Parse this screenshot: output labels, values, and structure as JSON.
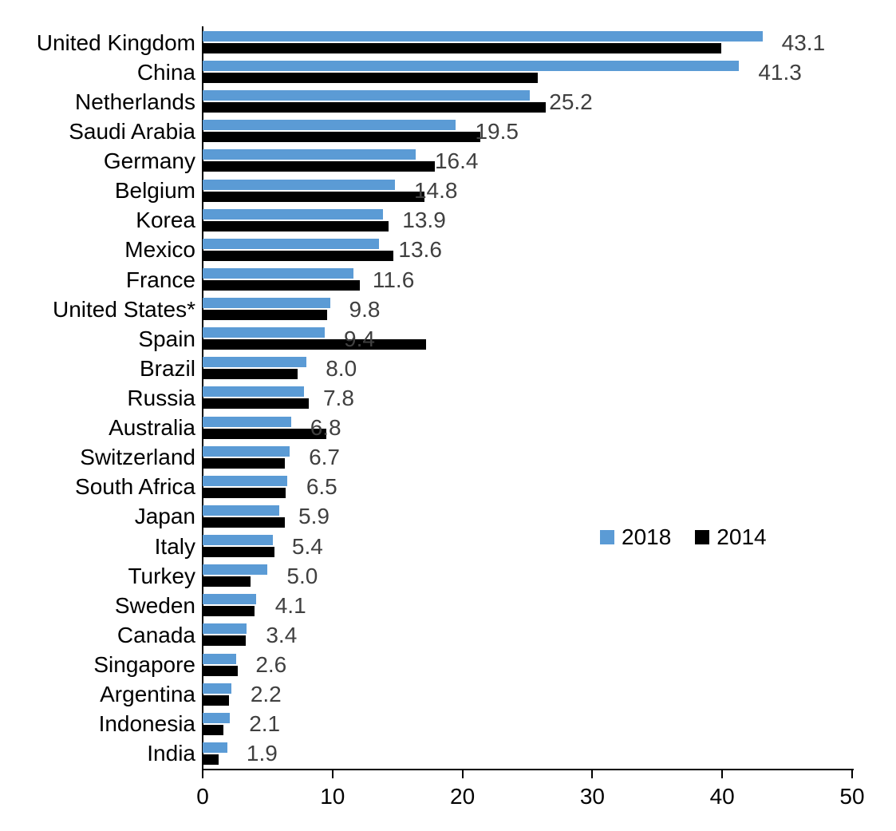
{
  "chart_data": {
    "type": "bar",
    "orientation": "horizontal",
    "categories": [
      "United Kingdom",
      "China",
      "Netherlands",
      "Saudi Arabia",
      "Germany",
      "Belgium",
      "Korea",
      "Mexico",
      "France",
      "United States*",
      "Spain",
      "Brazil",
      "Russia",
      "Australia",
      "Switzerland",
      "South Africa",
      "Japan",
      "Italy",
      "Turkey",
      "Sweden",
      "Canada",
      "Singapore",
      "Argentina",
      "Indonesia",
      "India"
    ],
    "series": [
      {
        "name": "2018",
        "color": "#5B9BD5",
        "values": [
          43.1,
          41.3,
          25.2,
          19.5,
          16.4,
          14.8,
          13.9,
          13.6,
          11.6,
          9.8,
          9.4,
          8.0,
          7.8,
          6.8,
          6.7,
          6.5,
          5.9,
          5.4,
          5.0,
          4.1,
          3.4,
          2.6,
          2.2,
          2.1,
          1.9
        ],
        "data_labels": [
          "43.1",
          "41.3",
          "25.2",
          "19.5",
          "16.4",
          "14.8",
          "13.9",
          "13.6",
          "11.6",
          "9.8",
          "9.4",
          "8.0",
          "7.8",
          "6.8",
          "6.7",
          "6.5",
          "5.9",
          "5.4",
          "5.0",
          "4.1",
          "3.4",
          "2.6",
          "2.2",
          "2.1",
          "1.9"
        ]
      },
      {
        "name": "2014",
        "color": "#000000",
        "values": [
          39.9,
          25.8,
          26.4,
          21.4,
          17.9,
          17.1,
          14.3,
          14.7,
          12.1,
          9.6,
          17.2,
          7.3,
          8.2,
          9.5,
          6.3,
          6.4,
          6.3,
          5.5,
          3.7,
          4.0,
          3.3,
          2.7,
          2.0,
          1.6,
          1.2
        ]
      }
    ],
    "xlim": [
      0,
      50
    ],
    "x_ticks": [
      0,
      10,
      20,
      30,
      40,
      50
    ],
    "x_tick_labels": [
      "0",
      "10",
      "20",
      "30",
      "40",
      "50"
    ],
    "grid": false,
    "legend_position": "center-right",
    "value_label_color": "#404040",
    "axis_color": "#000000"
  }
}
